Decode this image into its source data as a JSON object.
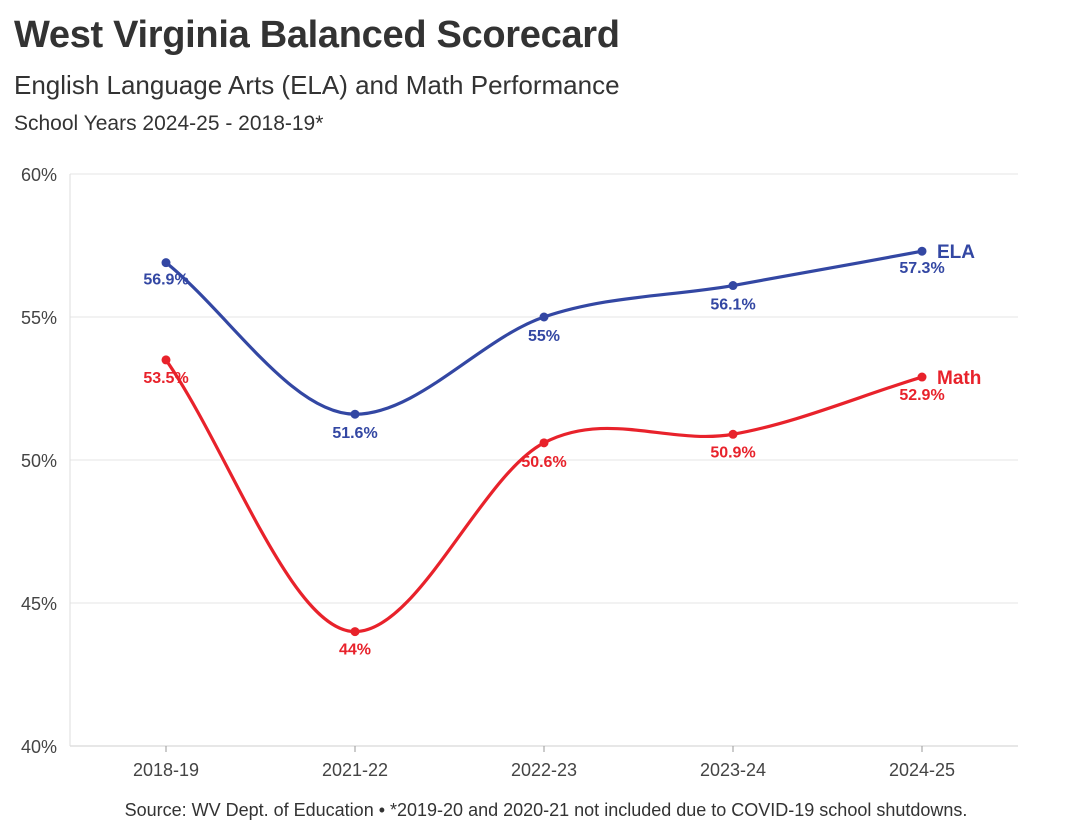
{
  "title": "West Virginia Balanced Scorecard",
  "subtitle": "English Language Arts (ELA) and Math Performance",
  "subtitle2": "School Years 2024-25 - 2018-19*",
  "source": "Source: WV Dept. of Education • *2019-20 and 2020-21 not included due to COVID-19 school shutdowns.",
  "chart_data": {
    "type": "line",
    "categories": [
      "2018-19",
      "2021-22",
      "2022-23",
      "2023-24",
      "2024-25"
    ],
    "ylim": [
      40,
      60
    ],
    "yticks": [
      40,
      45,
      50,
      55,
      60
    ],
    "ytick_labels": [
      "40%",
      "45%",
      "50%",
      "55%",
      "60%"
    ],
    "grid": true,
    "series": [
      {
        "name": "ELA",
        "color": "#3347a3",
        "values": [
          56.9,
          51.6,
          55.0,
          56.1,
          57.3
        ],
        "labels": [
          "56.9%",
          "51.6%",
          "55%",
          "56.1%",
          "57.3%"
        ]
      },
      {
        "name": "Math",
        "color": "#e8222b",
        "values": [
          53.5,
          44.0,
          50.6,
          50.9,
          52.9
        ],
        "labels": [
          "53.5%",
          "44%",
          "50.6%",
          "50.9%",
          "52.9%"
        ]
      }
    ]
  }
}
